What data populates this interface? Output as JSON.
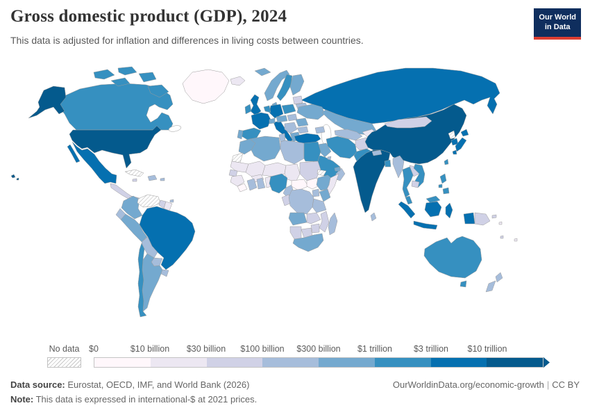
{
  "header": {
    "title": "Gross domestic product (GDP), 2024",
    "subtitle": "This data is adjusted for inflation and differences in living costs between countries.",
    "logo": {
      "line1": "Our World",
      "line2": "in Data",
      "bg_color": "#0f2e5e",
      "accent_color": "#dc3e32"
    }
  },
  "legend": {
    "no_data_label": "No data",
    "bin_labels": [
      "$0",
      "$10 billion",
      "$30 billion",
      "$100 billion",
      "$300 billion",
      "$1 trillion",
      "$3 trillion",
      "$10 trillion"
    ],
    "bin_colors": [
      "#fff7fb",
      "#ece7f2",
      "#d0d1e6",
      "#a6bddb",
      "#74a9cf",
      "#3690c0",
      "#0570b0",
      "#045a8d"
    ]
  },
  "chart_data": {
    "type": "heatmap",
    "subtype": "world-choropleth",
    "title": "Gross domestic product (GDP)",
    "year": 2024,
    "unit": "international-$ at 2021 prices",
    "bin_labels": [
      "$0",
      "$10 billion",
      "$30 billion",
      "$100 billion",
      "$300 billion",
      "$1 trillion",
      "$3 trillion",
      "$10 trillion"
    ],
    "bin_colors": [
      "#fff7fb",
      "#ece7f2",
      "#d0d1e6",
      "#a6bddb",
      "#74a9cf",
      "#3690c0",
      "#0570b0",
      "#045a8d"
    ],
    "no_data_style": "hatched",
    "countries": {
      "united-states": 8,
      "canada": 6,
      "greenland": 1,
      "mexico": 7,
      "central-america": 3,
      "panama": 4,
      "cuba": "no-data",
      "hispaniola": 4,
      "jamaica": 3,
      "puerto-rico": 4,
      "trinidad-and-tobago": 4,
      "colombia": 5,
      "venezuela": "no-data",
      "guyana": 3,
      "suriname": 2,
      "ecuador": 4,
      "peru": 5,
      "brazil": 7,
      "bolivia": 4,
      "paraguay": 4,
      "uruguay": 4,
      "argentina": 5,
      "chile": 6,
      "iceland": 2,
      "united-kingdom": 7,
      "ireland": 6,
      "norway": 5,
      "sweden": 6,
      "denmark": 5,
      "finland": 5,
      "baltics": 3,
      "belarus": 4,
      "poland": 6,
      "germany": 7,
      "netherlands-belgium": 6,
      "france": 7,
      "spain": 6,
      "portugal": 5,
      "italy": 7,
      "switzerland": 5,
      "austria-czechia": 5,
      "hungary-slovakia": 4,
      "romania": 5,
      "balkans": 4,
      "bulgaria": 4,
      "greece": 5,
      "ukraine": 5,
      "russia": 7,
      "kazakhstan": 5,
      "uzbekistan-turkmenistan": 4,
      "kyrgyzstan-tajikistan": 2,
      "caucasus": 4,
      "turkey": 7,
      "syria": "no-data",
      "levant": 4,
      "iraq": 5,
      "iran": 6,
      "saudi-arabia": 6,
      "yemen": "no-data",
      "oman": 4,
      "united-arab-emirates": 5,
      "kuwait": 4,
      "afghanistan": 3,
      "pakistan": 6,
      "india": 8,
      "nepal": 4,
      "bangladesh": 6,
      "sri-lanka": 4,
      "china": 8,
      "mongolia": 3,
      "north-korea": "no-data",
      "south-korea": 7,
      "japan": 7,
      "taiwan": 6,
      "myanmar": 4,
      "thailand": 6,
      "laos": 3,
      "vietnam": 6,
      "cambodia": 3,
      "malaysia": 6,
      "indonesia": 7,
      "philippines": 6,
      "papua-new-guinea": 3,
      "solomon-islands": 2,
      "new-caledonia": 3,
      "fiji": 2,
      "australia": 6,
      "new-zealand": 4,
      "morocco": 5,
      "western-sahara": "no-data",
      "algeria": 5,
      "tunisia": 4,
      "libya": 4,
      "egypt": 6,
      "mauritania": 2,
      "mali": 2,
      "niger": 2,
      "chad": 2,
      "sudan": 3,
      "senegal": 3,
      "guinea": 2,
      "sierra-leone-liberia": 1,
      "burkina-faso": 2,
      "ivory-coast": 4,
      "ghana": 4,
      "togo-benin": 2,
      "nigeria": 6,
      "cameroon": 4,
      "central-african-republic": 1,
      "south-sudan": 1,
      "ethiopia": 5,
      "eritrea": "no-data",
      "somalia": 2,
      "kenya": 5,
      "uganda": 4,
      "gabon-congo": 3,
      "democratic-republic-of-congo": 4,
      "tanzania": 4,
      "angola": 5,
      "zambia": 3,
      "mozambique": 3,
      "zimbabwe": 3,
      "botswana": 3,
      "namibia": 3,
      "south-africa": 5,
      "madagascar": 4
    }
  },
  "footer": {
    "source_label": "Data source:",
    "source_text": " Eurostat, OECD, IMF, and World Bank (2026)",
    "note_label": "Note:",
    "note_text": " This data is expressed in international-$ at 2021 prices.",
    "link": "OurWorldinData.org/economic-growth",
    "separator": "|",
    "license": "CC BY"
  }
}
